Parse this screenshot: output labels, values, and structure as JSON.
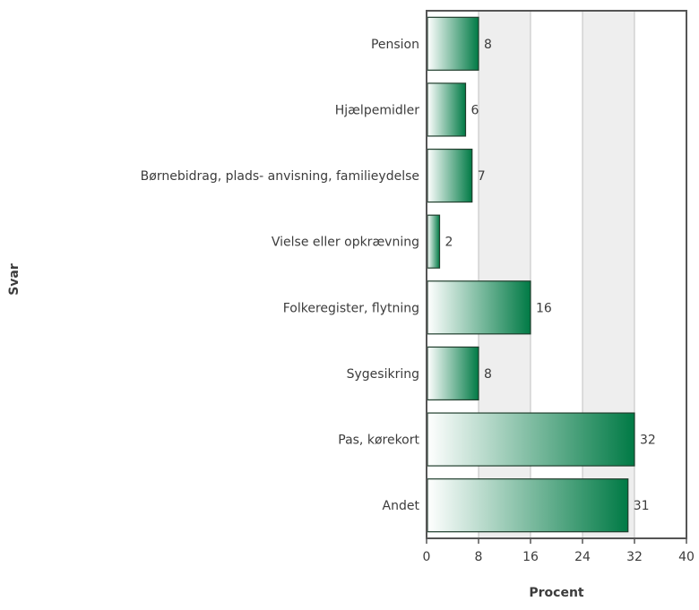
{
  "chart_data": {
    "type": "bar",
    "orientation": "horizontal",
    "categories": [
      "Pension",
      "Hjælpemidler",
      "Børnebidrag, plads- anvisning, familieydelse",
      "Vielse eller opkrævning",
      "Folkeregister, flytning",
      "Sygesikring",
      "Pas, kørekort",
      "Andet"
    ],
    "values": [
      8,
      6,
      7,
      2,
      16,
      8,
      32,
      31
    ],
    "value_labels": [
      "8",
      "6",
      "7",
      "2",
      "16",
      "8",
      "32",
      "31"
    ],
    "title": "",
    "xlabel": "Procent",
    "ylabel": "Svar",
    "xlim": [
      0,
      40
    ],
    "xticks": [
      "0",
      "8",
      "16",
      "24",
      "32",
      "40"
    ],
    "grid": "vertical alternating bands",
    "colors": {
      "bar_light": "#ffffff",
      "bar_dark": "#007a45",
      "bar_border": "#1f3d2c",
      "band": "#eeeeee",
      "gridline": "#c0c0c0",
      "frame": "#555555",
      "text": "#3c3c3c"
    }
  }
}
